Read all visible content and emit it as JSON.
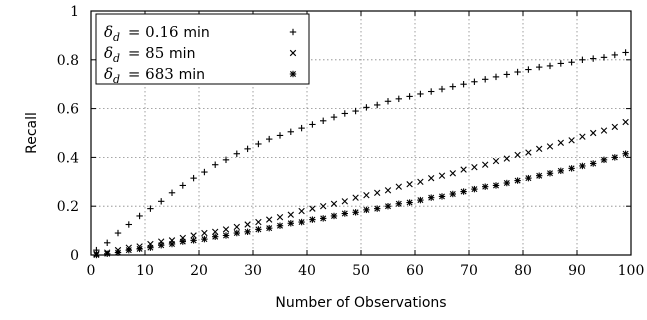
{
  "chart_data": {
    "type": "scatter",
    "xlabel": "Number of Observations",
    "ylabel": "Recall",
    "xlim": [
      0,
      100
    ],
    "ylim": [
      0,
      1
    ],
    "xticks": [
      0,
      10,
      20,
      30,
      40,
      50,
      60,
      70,
      80,
      90,
      100
    ],
    "yticks": [
      0,
      0.2,
      0.4,
      0.6,
      0.8,
      1
    ],
    "ytick_labels": [
      "0",
      "0.2",
      "0.4",
      "0.6",
      "0.8",
      "1"
    ],
    "grid": true,
    "legend_position": "top-left",
    "x": [
      1,
      3,
      5,
      7,
      9,
      11,
      13,
      15,
      17,
      19,
      21,
      23,
      25,
      27,
      29,
      31,
      33,
      35,
      37,
      39,
      41,
      43,
      45,
      47,
      49,
      51,
      53,
      55,
      57,
      59,
      61,
      63,
      65,
      67,
      69,
      71,
      73,
      75,
      77,
      79,
      81,
      83,
      85,
      87,
      89,
      91,
      93,
      95,
      97,
      99
    ],
    "series": [
      {
        "name": "0.16",
        "delta_sub": "d",
        "unit": "min",
        "marker": "plus",
        "values": [
          0.02,
          0.05,
          0.09,
          0.125,
          0.16,
          0.19,
          0.22,
          0.255,
          0.285,
          0.315,
          0.34,
          0.37,
          0.39,
          0.415,
          0.435,
          0.455,
          0.475,
          0.49,
          0.505,
          0.52,
          0.535,
          0.55,
          0.565,
          0.58,
          0.59,
          0.605,
          0.615,
          0.63,
          0.64,
          0.65,
          0.66,
          0.67,
          0.68,
          0.69,
          0.7,
          0.71,
          0.72,
          0.73,
          0.74,
          0.75,
          0.76,
          0.77,
          0.775,
          0.785,
          0.79,
          0.8,
          0.805,
          0.81,
          0.82,
          0.83
        ]
      },
      {
        "name": "85",
        "delta_sub": "d",
        "unit": "min",
        "marker": "cross",
        "values": [
          0.005,
          0.01,
          0.02,
          0.03,
          0.035,
          0.045,
          0.055,
          0.06,
          0.07,
          0.08,
          0.09,
          0.095,
          0.105,
          0.115,
          0.125,
          0.135,
          0.145,
          0.155,
          0.165,
          0.18,
          0.19,
          0.2,
          0.21,
          0.22,
          0.235,
          0.245,
          0.255,
          0.265,
          0.28,
          0.29,
          0.3,
          0.315,
          0.325,
          0.335,
          0.35,
          0.36,
          0.37,
          0.385,
          0.395,
          0.41,
          0.42,
          0.435,
          0.445,
          0.46,
          0.47,
          0.485,
          0.5,
          0.51,
          0.525,
          0.545
        ]
      },
      {
        "name": "683",
        "delta_sub": "d",
        "unit": "min",
        "marker": "star",
        "values": [
          0.0,
          0.005,
          0.01,
          0.02,
          0.025,
          0.03,
          0.04,
          0.045,
          0.055,
          0.06,
          0.065,
          0.075,
          0.08,
          0.09,
          0.095,
          0.105,
          0.11,
          0.12,
          0.13,
          0.135,
          0.145,
          0.15,
          0.16,
          0.17,
          0.175,
          0.185,
          0.19,
          0.2,
          0.21,
          0.215,
          0.225,
          0.235,
          0.24,
          0.25,
          0.26,
          0.27,
          0.28,
          0.285,
          0.295,
          0.305,
          0.315,
          0.325,
          0.335,
          0.345,
          0.355,
          0.365,
          0.375,
          0.39,
          0.4,
          0.415
        ]
      }
    ]
  }
}
